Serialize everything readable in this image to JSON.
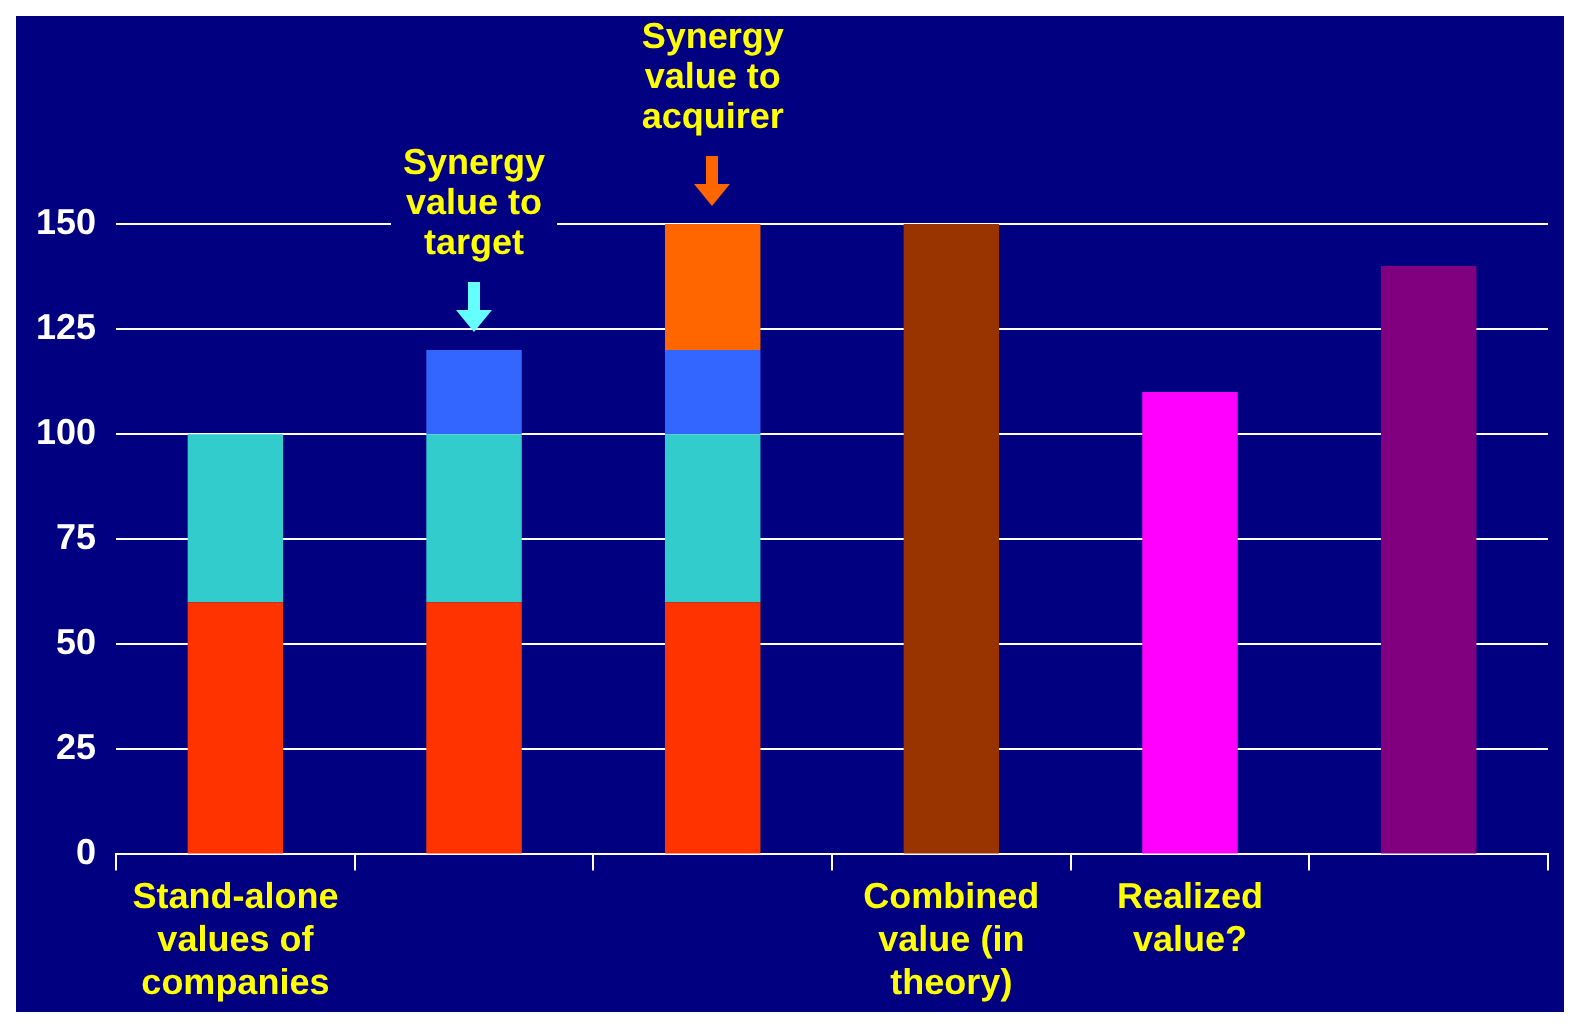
{
  "chart_data": {
    "type": "bar",
    "stacked": true,
    "categories": [
      "Stand-alone values of companies",
      null,
      null,
      "Combined value (in theory)",
      "Realized value?",
      null
    ],
    "series": [
      {
        "color": "#ff3300",
        "values": [
          60,
          60,
          60,
          null,
          null,
          null
        ]
      },
      {
        "color": "#33cccc",
        "values": [
          40,
          40,
          40,
          null,
          null,
          null
        ]
      },
      {
        "color": "#3366ff",
        "values": [
          null,
          20,
          20,
          null,
          null,
          null
        ]
      },
      {
        "color": "#ff6600",
        "values": [
          null,
          null,
          30,
          null,
          null,
          null
        ]
      },
      {
        "color": "#993300",
        "values": [
          null,
          null,
          null,
          150,
          null,
          null
        ]
      },
      {
        "color": "#ff00ff",
        "values": [
          null,
          null,
          null,
          null,
          110,
          null
        ]
      },
      {
        "color": "#800080",
        "values": [
          null,
          null,
          null,
          null,
          null,
          140
        ]
      }
    ],
    "ylim": [
      0,
      150
    ],
    "yticks": [
      0,
      25,
      50,
      75,
      100,
      125,
      150
    ],
    "grid": "y",
    "legend": false,
    "annotations": [
      {
        "text": "Synergy value to target",
        "y": 120
      },
      {
        "text": "Synergy value to acquirer",
        "y": 150
      }
    ]
  }
}
